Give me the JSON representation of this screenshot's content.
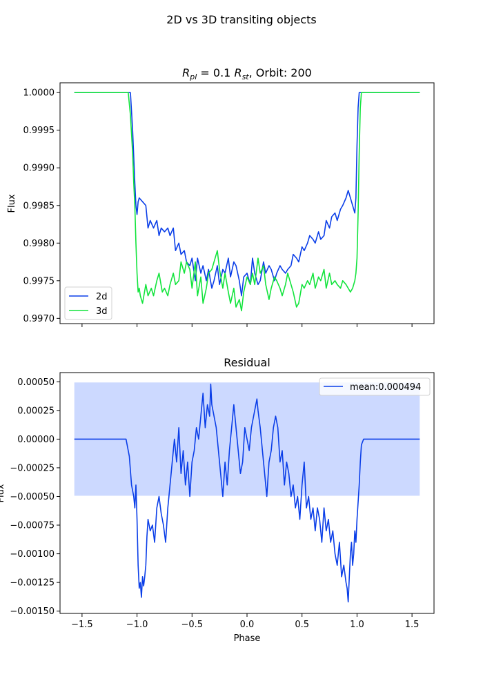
{
  "figure": {
    "suptitle": "2D vs 3D transiting objects"
  },
  "chart_data": [
    {
      "type": "line",
      "title_parts": {
        "r_pl": "R",
        "r_pl_sub": "pl",
        "eq": " = 0.1 ",
        "r_st": "R",
        "r_st_sub": "st",
        "rest": ", Orbit: 200"
      },
      "ylabel": "Flux",
      "xlabel": "",
      "xlim": [
        -1.7,
        1.7
      ],
      "ylim": [
        0.99693,
        1.00013
      ],
      "xticks": [
        -1.5,
        -1.0,
        -0.5,
        0.0,
        0.5,
        1.0,
        1.5
      ],
      "xtick_labels_visible": false,
      "yticks": [
        0.997,
        0.9975,
        0.998,
        0.9985,
        0.999,
        0.9995,
        1.0
      ],
      "ytick_labels": [
        "0.9970",
        "0.9975",
        "0.9980",
        "0.9985",
        "0.9990",
        "0.9995",
        "1.0000"
      ],
      "legend": {
        "position": "lower-left",
        "entries": [
          "2d",
          "3d"
        ]
      },
      "colors": {
        "2d": "#0a3ee8",
        "3d": "#12e43c"
      },
      "series": [
        {
          "name": "2d",
          "x": [
            -1.57,
            -1.3,
            -1.1,
            -1.06,
            -1.04,
            -1.02,
            -1.01,
            -1.0,
            -0.99,
            -0.98,
            -0.95,
            -0.92,
            -0.9,
            -0.88,
            -0.85,
            -0.82,
            -0.8,
            -0.78,
            -0.75,
            -0.72,
            -0.7,
            -0.67,
            -0.65,
            -0.62,
            -0.6,
            -0.57,
            -0.55,
            -0.52,
            -0.5,
            -0.47,
            -0.45,
            -0.42,
            -0.4,
            -0.37,
            -0.35,
            -0.32,
            -0.3,
            -0.27,
            -0.25,
            -0.22,
            -0.2,
            -0.17,
            -0.15,
            -0.12,
            -0.1,
            -0.07,
            -0.05,
            -0.03,
            0.0,
            0.03,
            0.05,
            0.07,
            0.1,
            0.12,
            0.15,
            0.17,
            0.2,
            0.22,
            0.25,
            0.27,
            0.3,
            0.32,
            0.35,
            0.37,
            0.4,
            0.42,
            0.45,
            0.47,
            0.5,
            0.52,
            0.55,
            0.57,
            0.6,
            0.62,
            0.65,
            0.67,
            0.7,
            0.72,
            0.75,
            0.77,
            0.8,
            0.82,
            0.85,
            0.87,
            0.9,
            0.92,
            0.94,
            0.96,
            0.98,
            0.99,
            1.0,
            1.01,
            1.02,
            1.04,
            1.06,
            1.1,
            1.3,
            1.57
          ],
          "values": [
            1.0,
            1.0,
            1.0,
            1.0,
            0.9995,
            0.9988,
            0.9985,
            0.99838,
            0.99855,
            0.9986,
            0.99855,
            0.9985,
            0.9982,
            0.9983,
            0.9982,
            0.9983,
            0.9981,
            0.9982,
            0.99815,
            0.9982,
            0.9981,
            0.9982,
            0.9979,
            0.998,
            0.99785,
            0.9979,
            0.99775,
            0.9977,
            0.9978,
            0.9975,
            0.9978,
            0.9976,
            0.9977,
            0.9975,
            0.99765,
            0.9974,
            0.9975,
            0.9977,
            0.99745,
            0.99765,
            0.9976,
            0.9978,
            0.99755,
            0.99775,
            0.9977,
            0.9975,
            0.9973,
            0.99755,
            0.9976,
            0.99745,
            0.9978,
            0.9976,
            0.99745,
            0.9975,
            0.99775,
            0.9976,
            0.9977,
            0.99765,
            0.9975,
            0.9976,
            0.9977,
            0.99765,
            0.9976,
            0.99765,
            0.9977,
            0.99785,
            0.9978,
            0.99775,
            0.99795,
            0.9979,
            0.998,
            0.9981,
            0.99805,
            0.998,
            0.99815,
            0.99805,
            0.9981,
            0.9983,
            0.9982,
            0.99835,
            0.9984,
            0.9983,
            0.99845,
            0.9985,
            0.9986,
            0.9987,
            0.9986,
            0.9985,
            0.9984,
            0.9986,
            0.9993,
            0.9998,
            1.0,
            1.0,
            1.0,
            1.0,
            1.0,
            1.0
          ]
        },
        {
          "name": "3d",
          "x": [
            -1.57,
            -1.3,
            -1.12,
            -1.08,
            -1.06,
            -1.04,
            -1.03,
            -1.02,
            -1.01,
            -1.0,
            -0.99,
            -0.98,
            -0.97,
            -0.95,
            -0.92,
            -0.9,
            -0.87,
            -0.85,
            -0.82,
            -0.8,
            -0.77,
            -0.75,
            -0.72,
            -0.7,
            -0.67,
            -0.65,
            -0.62,
            -0.6,
            -0.57,
            -0.55,
            -0.52,
            -0.5,
            -0.47,
            -0.45,
            -0.42,
            -0.4,
            -0.37,
            -0.35,
            -0.32,
            -0.3,
            -0.27,
            -0.25,
            -0.22,
            -0.2,
            -0.17,
            -0.15,
            -0.12,
            -0.1,
            -0.07,
            -0.05,
            -0.03,
            0.0,
            0.03,
            0.05,
            0.07,
            0.1,
            0.12,
            0.15,
            0.17,
            0.2,
            0.22,
            0.25,
            0.27,
            0.3,
            0.32,
            0.35,
            0.37,
            0.4,
            0.42,
            0.45,
            0.47,
            0.5,
            0.52,
            0.55,
            0.57,
            0.6,
            0.62,
            0.65,
            0.67,
            0.7,
            0.72,
            0.75,
            0.77,
            0.8,
            0.82,
            0.85,
            0.87,
            0.9,
            0.92,
            0.94,
            0.96,
            0.98,
            0.99,
            1.0,
            1.01,
            1.02,
            1.03,
            1.04,
            1.05,
            1.06,
            1.08,
            1.12,
            1.3,
            1.57
          ],
          "values": [
            1.0,
            1.0,
            1.0,
            1.0,
            0.9997,
            0.9992,
            0.9988,
            0.9985,
            0.998,
            0.9976,
            0.99735,
            0.9974,
            0.9973,
            0.9972,
            0.99745,
            0.9973,
            0.9974,
            0.9973,
            0.9975,
            0.9976,
            0.99735,
            0.9974,
            0.9973,
            0.99745,
            0.9976,
            0.99745,
            0.9975,
            0.99775,
            0.9976,
            0.99775,
            0.99765,
            0.9974,
            0.99775,
            0.9973,
            0.99755,
            0.9972,
            0.9974,
            0.9976,
            0.99765,
            0.99775,
            0.9979,
            0.99765,
            0.9974,
            0.9976,
            0.99735,
            0.9972,
            0.9974,
            0.99715,
            0.99725,
            0.9971,
            0.99735,
            0.99755,
            0.99745,
            0.9976,
            0.99745,
            0.9978,
            0.9976,
            0.9977,
            0.99745,
            0.99725,
            0.9974,
            0.99755,
            0.9975,
            0.9974,
            0.9973,
            0.99745,
            0.9976,
            0.99745,
            0.99735,
            0.99715,
            0.9972,
            0.99745,
            0.9974,
            0.9975,
            0.99745,
            0.9976,
            0.9974,
            0.99755,
            0.9975,
            0.99765,
            0.9974,
            0.9976,
            0.99745,
            0.9975,
            0.99745,
            0.9974,
            0.9975,
            0.99745,
            0.9974,
            0.99735,
            0.9974,
            0.9975,
            0.9976,
            0.9978,
            0.9984,
            0.9992,
            0.9998,
            1.0,
            1.0,
            1.0,
            1.0,
            1.0,
            1.0,
            1.0
          ]
        }
      ]
    },
    {
      "type": "line",
      "title": "Residual",
      "ylabel": "Flux",
      "xlabel": "Phase",
      "xlim": [
        -1.7,
        1.7
      ],
      "ylim": [
        -0.00152,
        0.00058
      ],
      "xticks": [
        -1.5,
        -1.0,
        -0.5,
        0.0,
        0.5,
        1.0,
        1.5
      ],
      "xtick_labels": [
        "−1.5",
        "−1.0",
        "−0.5",
        "0.0",
        "0.5",
        "1.0",
        "1.5"
      ],
      "yticks": [
        -0.0015,
        -0.00125,
        -0.001,
        -0.00075,
        -0.0005,
        -0.00025,
        0.0,
        0.00025,
        0.0005
      ],
      "ytick_labels": [
        "−0.00150",
        "−0.00125",
        "−0.00100",
        "−0.00075",
        "−0.00050",
        "−0.00025",
        "0.00000",
        "0.00025",
        "0.00050"
      ],
      "legend": {
        "position": "upper-right",
        "entries": [
          "mean:0.000494"
        ]
      },
      "band": {
        "x": [
          -1.57,
          1.57
        ],
        "y": [
          -0.000494,
          0.000494
        ],
        "color": "#ccd9ff"
      },
      "colors": {
        "line": "#0a3ee8"
      },
      "series": [
        {
          "name": "mean:0.000494",
          "x": [
            -1.57,
            -1.3,
            -1.1,
            -1.07,
            -1.05,
            -1.03,
            -1.02,
            -1.01,
            -1.0,
            -0.99,
            -0.98,
            -0.97,
            -0.96,
            -0.95,
            -0.94,
            -0.93,
            -0.92,
            -0.91,
            -0.9,
            -0.88,
            -0.86,
            -0.84,
            -0.82,
            -0.8,
            -0.78,
            -0.76,
            -0.74,
            -0.72,
            -0.7,
            -0.68,
            -0.66,
            -0.64,
            -0.62,
            -0.6,
            -0.58,
            -0.56,
            -0.54,
            -0.52,
            -0.5,
            -0.48,
            -0.46,
            -0.44,
            -0.42,
            -0.4,
            -0.38,
            -0.36,
            -0.34,
            -0.33,
            -0.32,
            -0.3,
            -0.28,
            -0.26,
            -0.24,
            -0.22,
            -0.2,
            -0.18,
            -0.16,
            -0.14,
            -0.12,
            -0.1,
            -0.08,
            -0.06,
            -0.04,
            -0.02,
            0.0,
            0.02,
            0.04,
            0.06,
            0.08,
            0.09,
            0.1,
            0.12,
            0.14,
            0.16,
            0.18,
            0.2,
            0.22,
            0.24,
            0.26,
            0.28,
            0.3,
            0.32,
            0.34,
            0.36,
            0.38,
            0.4,
            0.42,
            0.44,
            0.46,
            0.48,
            0.5,
            0.52,
            0.54,
            0.56,
            0.58,
            0.6,
            0.62,
            0.64,
            0.66,
            0.68,
            0.7,
            0.72,
            0.74,
            0.76,
            0.78,
            0.8,
            0.82,
            0.84,
            0.86,
            0.88,
            0.9,
            0.91,
            0.92,
            0.93,
            0.94,
            0.95,
            0.96,
            0.97,
            0.98,
            0.99,
            1.0,
            1.01,
            1.02,
            1.03,
            1.04,
            1.06,
            1.1,
            1.3,
            1.57
          ],
          "values": [
            0.0,
            0.0,
            0.0,
            -0.00015,
            -0.0004,
            -0.0005,
            -0.0006,
            -0.0004,
            -0.0007,
            -0.0011,
            -0.0013,
            -0.00125,
            -0.00138,
            -0.0012,
            -0.00128,
            -0.0012,
            -0.0011,
            -0.00085,
            -0.0007,
            -0.0008,
            -0.00075,
            -0.0009,
            -0.0006,
            -0.0005,
            -0.00065,
            -0.00075,
            -0.0009,
            -0.0006,
            -0.0004,
            -0.0002,
            0.0,
            -0.0002,
            0.0001,
            -0.0003,
            -0.0001,
            -0.0004,
            -0.0002,
            -0.0005,
            -0.0002,
            -0.0001,
            0.0001,
            0.0,
            0.0002,
            0.0004,
            0.0001,
            0.0003,
            0.0002,
            0.00048,
            0.0003,
            0.0002,
            0.0001,
            -0.0001,
            -0.0003,
            -0.0005,
            -0.0002,
            -0.0004,
            -0.0001,
            0.0001,
            0.0003,
            0.0001,
            -0.0001,
            -0.0003,
            -0.0002,
            0.0001,
            0.0,
            -0.0001,
            0.0001,
            0.0002,
            0.0003,
            0.00035,
            0.00025,
            0.0001,
            -0.0001,
            -0.0003,
            -0.0005,
            -0.0002,
            -0.0001,
            0.0001,
            0.0002,
            0.0001,
            -0.0002,
            -0.0001,
            -0.0004,
            -0.0002,
            -0.0003,
            -0.0005,
            -0.0004,
            -0.0006,
            -0.0005,
            -0.0007,
            -0.0004,
            -0.0002,
            -0.0006,
            -0.0005,
            -0.0007,
            -0.0006,
            -0.0008,
            -0.0006,
            -0.0007,
            -0.0009,
            -0.0006,
            -0.0008,
            -0.0007,
            -0.0009,
            -0.0008,
            -0.001,
            -0.0011,
            -0.0009,
            -0.0012,
            -0.0011,
            -0.00125,
            -0.0013,
            -0.00142,
            -0.0012,
            -0.001,
            -0.0009,
            -0.0011,
            -0.001,
            -0.0008,
            -0.0009,
            -0.0007,
            -0.00055,
            -0.0004,
            -0.0002,
            -5e-05,
            0.0,
            0.0,
            0.0,
            0.0
          ]
        }
      ]
    }
  ]
}
